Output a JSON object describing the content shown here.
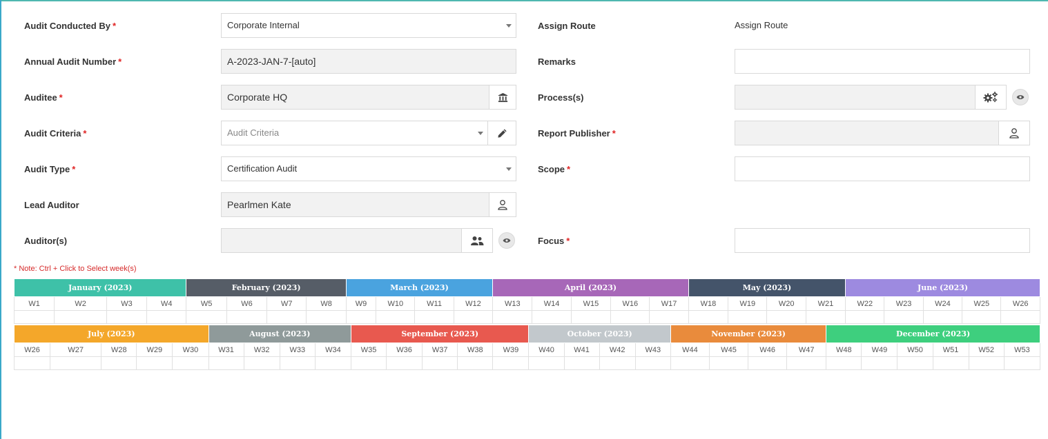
{
  "form": {
    "audit_conducted_by": {
      "label": "Audit Conducted By",
      "value": "Corporate Internal"
    },
    "annual_audit_number": {
      "label": "Annual Audit Number",
      "value": "A-2023-JAN-7-[auto]"
    },
    "auditee": {
      "label": "Auditee",
      "value": "Corporate HQ"
    },
    "audit_criteria": {
      "label": "Audit Criteria",
      "placeholder": "Audit Criteria"
    },
    "audit_type": {
      "label": "Audit Type",
      "value": "Certification Audit"
    },
    "lead_auditor": {
      "label": "Lead Auditor",
      "value": "Pearlmen Kate"
    },
    "auditors": {
      "label": "Auditor(s)",
      "value": ""
    },
    "assign_route": {
      "label": "Assign Route",
      "value": "Assign Route"
    },
    "remarks": {
      "label": "Remarks",
      "value": ""
    },
    "processes": {
      "label": "Process(s)",
      "value": ""
    },
    "report_publisher": {
      "label": "Report Publisher",
      "value": ""
    },
    "scope": {
      "label": "Scope",
      "value": ""
    },
    "focus": {
      "label": "Focus",
      "value": ""
    },
    "required_mark": "*"
  },
  "note": "* Note: Ctrl + Click to Select week(s)",
  "calendar": {
    "row1": [
      {
        "label": "January (2023)",
        "color": "#3ec1a8",
        "weeks": [
          "W1",
          "W2",
          "W3",
          "W4"
        ]
      },
      {
        "label": "February (2023)",
        "color": "#565d67",
        "weeks": [
          "W5",
          "W6",
          "W7",
          "W8"
        ]
      },
      {
        "label": "March (2023)",
        "color": "#4aa3df",
        "weeks": [
          "W9",
          "W10",
          "W11",
          "W12"
        ]
      },
      {
        "label": "April (2023)",
        "color": "#a767b8",
        "weeks": [
          "W13",
          "W14",
          "W15",
          "W16",
          "W17"
        ]
      },
      {
        "label": "May (2023)",
        "color": "#44546a",
        "weeks": [
          "W18",
          "W19",
          "W20",
          "W21"
        ]
      },
      {
        "label": "June (2023)",
        "color": "#9d8ae0",
        "weeks": [
          "W22",
          "W23",
          "W24",
          "W25",
          "W26"
        ]
      }
    ],
    "row2": [
      {
        "label": "July (2023)",
        "color": "#f4a72a",
        "weeks": [
          "W26",
          "W27",
          "W28",
          "W29",
          "W30"
        ]
      },
      {
        "label": "August (2023)",
        "color": "#8f9a9a",
        "weeks": [
          "W31",
          "W32",
          "W33",
          "W34"
        ]
      },
      {
        "label": "September (2023)",
        "color": "#e8594f",
        "weeks": [
          "W35",
          "W36",
          "W37",
          "W38",
          "W39"
        ]
      },
      {
        "label": "October (2023)",
        "color": "#c2c8cc",
        "weeks": [
          "W40",
          "W41",
          "W42",
          "W43"
        ]
      },
      {
        "label": "November (2023)",
        "color": "#e98b3c",
        "weeks": [
          "W44",
          "W45",
          "W46",
          "W47"
        ]
      },
      {
        "label": "December (2023)",
        "color": "#3ecf7e",
        "weeks": [
          "W48",
          "W49",
          "W50",
          "W51",
          "W52",
          "W53"
        ]
      }
    ]
  },
  "icons": {
    "auditee": "building-icon",
    "audit_criteria": "pencil-icon",
    "lead_auditor": "user-icon",
    "auditors": "users-icon",
    "processes": "cogs-icon",
    "report_publisher": "user-icon",
    "view": "eye-icon"
  }
}
